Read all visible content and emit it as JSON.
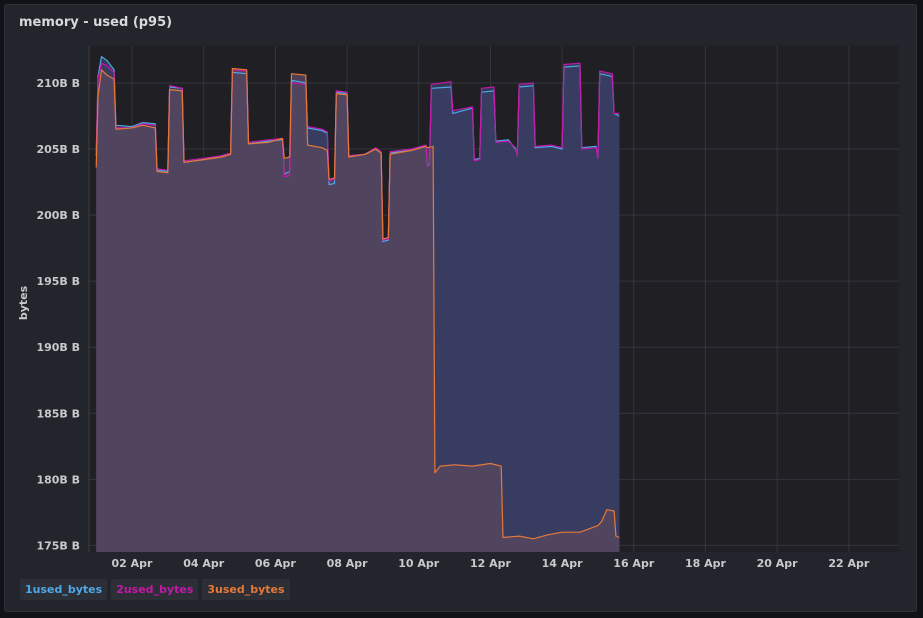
{
  "panel": {
    "title": "memory - used (p95)"
  },
  "chart_data": {
    "type": "area",
    "title": "memory - used (p95)",
    "ylabel": "bytes",
    "ylim": [
      174500,
      212800
    ],
    "xlim": [
      0.8,
      23.4
    ],
    "y_unit_note": "values in millions of bytes (B = billion on axis)",
    "yticks": [
      {
        "value": 175000,
        "label": "175B B"
      },
      {
        "value": 180000,
        "label": "180B B"
      },
      {
        "value": 185000,
        "label": "185B B"
      },
      {
        "value": 190000,
        "label": "190B B"
      },
      {
        "value": 195000,
        "label": "195B B"
      },
      {
        "value": 200000,
        "label": "200B B"
      },
      {
        "value": 205000,
        "label": "205B B"
      },
      {
        "value": 210000,
        "label": "210B B"
      }
    ],
    "xticks": [
      {
        "value": 2,
        "label": "02 Apr"
      },
      {
        "value": 4,
        "label": "04 Apr"
      },
      {
        "value": 6,
        "label": "06 Apr"
      },
      {
        "value": 8,
        "label": "08 Apr"
      },
      {
        "value": 10,
        "label": "10 Apr"
      },
      {
        "value": 12,
        "label": "12 Apr"
      },
      {
        "value": 14,
        "label": "14 Apr"
      },
      {
        "value": 16,
        "label": "16 Apr"
      },
      {
        "value": 18,
        "label": "18 Apr"
      },
      {
        "value": 20,
        "label": "20 Apr"
      },
      {
        "value": 22,
        "label": "22 Apr"
      }
    ],
    "series": [
      {
        "name": "1used_bytes",
        "color": "#4fa8e8",
        "fill": "#3b3f66",
        "points": [
          [
            1.0,
            204500
          ],
          [
            1.05,
            210500
          ],
          [
            1.15,
            212000
          ],
          [
            1.3,
            211700
          ],
          [
            1.5,
            211000
          ],
          [
            1.55,
            206800
          ],
          [
            2.0,
            206700
          ],
          [
            2.3,
            207000
          ],
          [
            2.65,
            206900
          ],
          [
            2.7,
            203400
          ],
          [
            3.0,
            203300
          ],
          [
            3.05,
            209700
          ],
          [
            3.4,
            209600
          ],
          [
            3.45,
            204000
          ],
          [
            4.0,
            204200
          ],
          [
            4.5,
            204500
          ],
          [
            4.75,
            204700
          ],
          [
            4.8,
            210800
          ],
          [
            5.2,
            210700
          ],
          [
            5.25,
            205400
          ],
          [
            5.8,
            205600
          ],
          [
            6.2,
            205700
          ],
          [
            6.25,
            203100
          ],
          [
            6.4,
            203300
          ],
          [
            6.45,
            210200
          ],
          [
            6.85,
            210000
          ],
          [
            6.9,
            206600
          ],
          [
            7.3,
            206400
          ],
          [
            7.45,
            206200
          ],
          [
            7.5,
            202300
          ],
          [
            7.65,
            202400
          ],
          [
            7.7,
            209300
          ],
          [
            8.0,
            209200
          ],
          [
            8.05,
            204500
          ],
          [
            8.5,
            204600
          ],
          [
            8.8,
            205000
          ],
          [
            8.95,
            204700
          ],
          [
            9.0,
            198000
          ],
          [
            9.15,
            198100
          ],
          [
            9.2,
            204700
          ],
          [
            9.8,
            204900
          ],
          [
            10.2,
            205300
          ],
          [
            10.25,
            203700
          ],
          [
            10.3,
            203900
          ],
          [
            10.35,
            209600
          ],
          [
            10.9,
            209700
          ],
          [
            10.95,
            207700
          ],
          [
            11.5,
            208100
          ],
          [
            11.55,
            204200
          ],
          [
            11.7,
            204300
          ],
          [
            11.75,
            209300
          ],
          [
            12.1,
            209400
          ],
          [
            12.15,
            205600
          ],
          [
            12.5,
            205700
          ],
          [
            12.7,
            205000
          ],
          [
            12.75,
            204600
          ],
          [
            12.8,
            209700
          ],
          [
            13.2,
            209800
          ],
          [
            13.25,
            205100
          ],
          [
            13.7,
            205200
          ],
          [
            14.0,
            205000
          ],
          [
            14.05,
            211200
          ],
          [
            14.5,
            211300
          ],
          [
            14.55,
            205100
          ],
          [
            14.95,
            205200
          ],
          [
            15.0,
            204300
          ],
          [
            15.05,
            210700
          ],
          [
            15.4,
            210500
          ],
          [
            15.45,
            207700
          ],
          [
            15.6,
            207500
          ]
        ]
      },
      {
        "name": "2used_bytes",
        "color": "#c418a8",
        "fill": "#3b3f66",
        "points": [
          [
            1.0,
            204600
          ],
          [
            1.05,
            210300
          ],
          [
            1.15,
            211500
          ],
          [
            1.3,
            211300
          ],
          [
            1.5,
            210800
          ],
          [
            1.55,
            206600
          ],
          [
            2.0,
            206600
          ],
          [
            2.3,
            206900
          ],
          [
            2.65,
            206800
          ],
          [
            2.7,
            203500
          ],
          [
            3.0,
            203400
          ],
          [
            3.05,
            209800
          ],
          [
            3.4,
            209600
          ],
          [
            3.45,
            204100
          ],
          [
            4.0,
            204300
          ],
          [
            4.5,
            204500
          ],
          [
            4.75,
            204700
          ],
          [
            4.8,
            211000
          ],
          [
            5.2,
            210900
          ],
          [
            5.25,
            205500
          ],
          [
            5.8,
            205700
          ],
          [
            6.2,
            205800
          ],
          [
            6.25,
            202900
          ],
          [
            6.4,
            203000
          ],
          [
            6.45,
            210000
          ],
          [
            6.85,
            209900
          ],
          [
            6.9,
            206700
          ],
          [
            7.3,
            206500
          ],
          [
            7.45,
            206300
          ],
          [
            7.5,
            202600
          ],
          [
            7.65,
            202700
          ],
          [
            7.7,
            209400
          ],
          [
            8.0,
            209300
          ],
          [
            8.05,
            204500
          ],
          [
            8.5,
            204600
          ],
          [
            8.8,
            205100
          ],
          [
            8.95,
            204800
          ],
          [
            9.0,
            198100
          ],
          [
            9.15,
            198200
          ],
          [
            9.2,
            204800
          ],
          [
            9.8,
            205000
          ],
          [
            10.2,
            205300
          ],
          [
            10.25,
            203700
          ],
          [
            10.3,
            203800
          ],
          [
            10.35,
            209900
          ],
          [
            10.9,
            210100
          ],
          [
            10.95,
            207900
          ],
          [
            11.5,
            208200
          ],
          [
            11.55,
            204100
          ],
          [
            11.7,
            204200
          ],
          [
            11.75,
            209600
          ],
          [
            12.1,
            209700
          ],
          [
            12.15,
            205500
          ],
          [
            12.5,
            205600
          ],
          [
            12.7,
            205100
          ],
          [
            12.75,
            204500
          ],
          [
            12.8,
            209900
          ],
          [
            13.2,
            210000
          ],
          [
            13.25,
            205200
          ],
          [
            13.7,
            205300
          ],
          [
            14.0,
            205100
          ],
          [
            14.05,
            211400
          ],
          [
            14.5,
            211500
          ],
          [
            14.55,
            205000
          ],
          [
            14.95,
            205100
          ],
          [
            15.0,
            204300
          ],
          [
            15.05,
            210900
          ],
          [
            15.4,
            210700
          ],
          [
            15.45,
            207700
          ],
          [
            15.6,
            207700
          ]
        ]
      },
      {
        "name": "3used_bytes",
        "color": "#e5793a",
        "fill": "#56455e",
        "points": [
          [
            1.0,
            203600
          ],
          [
            1.05,
            209000
          ],
          [
            1.15,
            211000
          ],
          [
            1.3,
            210600
          ],
          [
            1.5,
            210300
          ],
          [
            1.55,
            206500
          ],
          [
            2.0,
            206600
          ],
          [
            2.3,
            206800
          ],
          [
            2.65,
            206600
          ],
          [
            2.7,
            203300
          ],
          [
            3.0,
            203200
          ],
          [
            3.05,
            209500
          ],
          [
            3.4,
            209400
          ],
          [
            3.45,
            204000
          ],
          [
            4.0,
            204200
          ],
          [
            4.5,
            204400
          ],
          [
            4.75,
            204600
          ],
          [
            4.8,
            211100
          ],
          [
            5.2,
            211000
          ],
          [
            5.25,
            205400
          ],
          [
            5.8,
            205500
          ],
          [
            6.2,
            205800
          ],
          [
            6.25,
            204300
          ],
          [
            6.4,
            204400
          ],
          [
            6.45,
            210700
          ],
          [
            6.85,
            210600
          ],
          [
            6.9,
            205300
          ],
          [
            7.3,
            205100
          ],
          [
            7.45,
            204900
          ],
          [
            7.5,
            202700
          ],
          [
            7.65,
            202800
          ],
          [
            7.7,
            209200
          ],
          [
            8.0,
            209100
          ],
          [
            8.05,
            204400
          ],
          [
            8.5,
            204600
          ],
          [
            8.8,
            205000
          ],
          [
            8.95,
            204700
          ],
          [
            9.0,
            198200
          ],
          [
            9.15,
            198300
          ],
          [
            9.2,
            204600
          ],
          [
            9.8,
            204900
          ],
          [
            10.2,
            205200
          ],
          [
            10.25,
            205100
          ],
          [
            10.4,
            205200
          ],
          [
            10.45,
            180500
          ],
          [
            10.6,
            181000
          ],
          [
            11.0,
            181100
          ],
          [
            11.5,
            181000
          ],
          [
            12.0,
            181200
          ],
          [
            12.3,
            181000
          ],
          [
            12.35,
            175600
          ],
          [
            12.8,
            175700
          ],
          [
            13.2,
            175500
          ],
          [
            13.6,
            175800
          ],
          [
            14.0,
            176000
          ],
          [
            14.5,
            176000
          ],
          [
            14.8,
            176300
          ],
          [
            15.0,
            176500
          ],
          [
            15.1,
            176800
          ],
          [
            15.25,
            177700
          ],
          [
            15.45,
            177600
          ],
          [
            15.5,
            175700
          ],
          [
            15.6,
            175600
          ]
        ]
      }
    ]
  }
}
